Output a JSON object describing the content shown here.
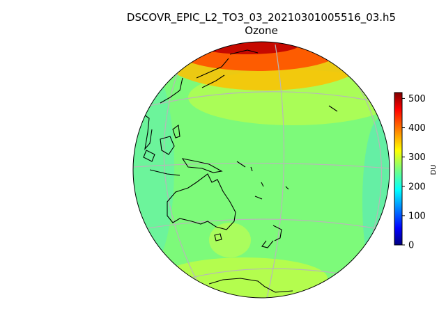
{
  "figure": {
    "title": "DSCOVR_EPIC_L2_TO3_03_20210301005516_03.h5",
    "subtitle": "Ozone"
  },
  "map": {
    "projection": "orthographic globe",
    "gridlines": true,
    "coastlines": true,
    "ocean_base_color": "#7dfa7a"
  },
  "colorbar": {
    "label": "DU",
    "min": 0,
    "max": 520,
    "ticks": [
      "0",
      "100",
      "200",
      "300",
      "400",
      "500"
    ],
    "colormap": "jet"
  }
}
